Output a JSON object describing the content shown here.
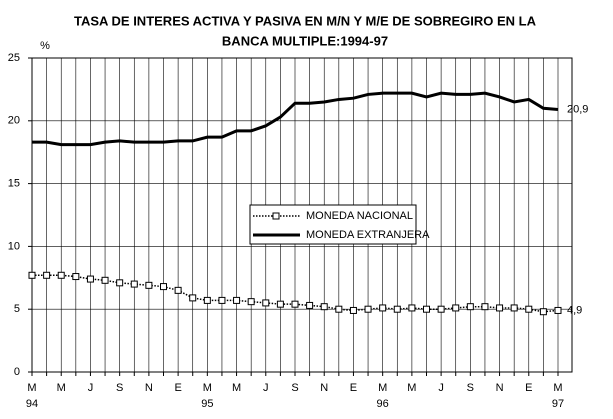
{
  "chart_data": {
    "type": "line",
    "title": [
      "TASA DE INTERES ACTIVA Y PASIVA EN M/N Y M/E DE SOBREGIRO EN LA",
      "BANCA MULTIPLE:1994-97"
    ],
    "y_label": "%",
    "categories": [
      "M",
      null,
      "M",
      null,
      "J",
      null,
      "S",
      null,
      "N",
      null,
      "E",
      null,
      "M",
      null,
      "M",
      null,
      "J",
      null,
      "S",
      null,
      "N",
      null,
      "E",
      null,
      "M",
      null,
      "M",
      null,
      "J",
      null,
      "S",
      null,
      "N",
      null,
      "E",
      null,
      "M"
    ],
    "year_labels": [
      "94",
      null,
      null,
      null,
      null,
      null,
      null,
      null,
      null,
      null,
      null,
      null,
      "95",
      null,
      null,
      null,
      null,
      null,
      null,
      null,
      null,
      null,
      null,
      null,
      "96",
      null,
      null,
      null,
      null,
      null,
      null,
      null,
      null,
      null,
      null,
      null,
      "97"
    ],
    "series": [
      {
        "name": "MONEDA NACIONAL",
        "color": "#000000",
        "marker": "square",
        "values": [
          7.7,
          7.7,
          7.7,
          7.6,
          7.4,
          7.3,
          7.1,
          7.0,
          6.9,
          6.8,
          6.5,
          5.9,
          5.7,
          5.7,
          5.7,
          5.6,
          5.5,
          5.4,
          5.4,
          5.3,
          5.2,
          5.0,
          4.9,
          5.0,
          5.1,
          5.0,
          5.1,
          5.0,
          5.0,
          5.1,
          5.2,
          5.2,
          5.1,
          5.1,
          5.0,
          4.8,
          4.9
        ],
        "value_labels": [
          null,
          null,
          null,
          null,
          null,
          null,
          null,
          null,
          null,
          null,
          null,
          null,
          null,
          null,
          null,
          null,
          null,
          null,
          null,
          null,
          null,
          null,
          null,
          null,
          null,
          null,
          null,
          null,
          null,
          null,
          null,
          null,
          null,
          null,
          null,
          null,
          "4,9"
        ]
      },
      {
        "name": "MONEDA EXTRANJERA",
        "color": "#000000",
        "marker": "none",
        "values": [
          18.3,
          18.3,
          18.1,
          18.1,
          18.1,
          18.3,
          18.4,
          18.3,
          18.3,
          18.3,
          18.4,
          18.4,
          18.7,
          18.7,
          19.2,
          19.2,
          19.6,
          20.3,
          21.4,
          21.4,
          21.5,
          21.7,
          21.8,
          22.1,
          22.2,
          22.2,
          22.2,
          21.9,
          22.2,
          22.1,
          22.1,
          22.2,
          21.9,
          21.5,
          21.7,
          21.0,
          20.9
        ],
        "value_labels": [
          null,
          null,
          null,
          null,
          null,
          null,
          null,
          null,
          null,
          null,
          null,
          null,
          null,
          null,
          null,
          null,
          null,
          null,
          null,
          null,
          null,
          null,
          null,
          null,
          null,
          null,
          null,
          null,
          null,
          null,
          null,
          null,
          null,
          null,
          null,
          null,
          "20,9"
        ]
      }
    ],
    "ylim": [
      0,
      25
    ],
    "yticks": [
      0,
      5,
      10,
      15,
      20,
      25
    ],
    "grid": true
  }
}
